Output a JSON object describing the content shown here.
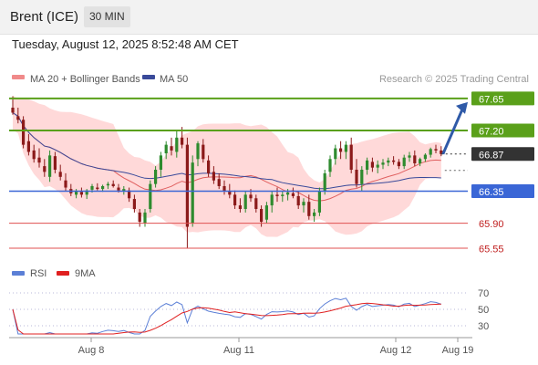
{
  "header": {
    "instrument": "Brent (ICE)",
    "timeframe": "30 MIN"
  },
  "datetime": "Tuesday, August 12, 2025 8:52:48 AM CET",
  "legend": {
    "ma20_label": "MA 20 + Bollinger Bands",
    "ma50_label": "MA 50",
    "credit": "Research © 2025 Trading Central",
    "rsi_label": "RSI",
    "rsi_ma_label": "9MA"
  },
  "colors": {
    "up_candle": "#2e8b2e",
    "down_candle": "#8b1a1a",
    "bollinger_fill": "#ffd2d2",
    "ma20": "#e06060",
    "ma50": "#3a4a9a",
    "resistance": "#5aa01a",
    "pivot": "#3a66d6",
    "support": "#e05050",
    "last_price": "#333333",
    "arrow": "#2f5aa8",
    "rsi": "#5b7fd6",
    "rsi_ma": "#e02020"
  },
  "chart_data": {
    "type": "line",
    "title": "Brent (ICE)",
    "timeframe": "30 MIN",
    "x_ticks": [
      "Aug 8",
      "Aug 11",
      "Aug 12",
      "Aug 19"
    ],
    "price_levels": [
      {
        "value": 67.65,
        "label": "67.65",
        "kind": "resistance"
      },
      {
        "value": 67.2,
        "label": "67.20",
        "kind": "resistance"
      },
      {
        "value": 66.87,
        "label": "66.87",
        "kind": "last"
      },
      {
        "value": 66.35,
        "label": "66.35",
        "kind": "pivot"
      },
      {
        "value": 65.9,
        "label": "65.90",
        "kind": "support"
      },
      {
        "value": 65.55,
        "label": "65.55",
        "kind": "support"
      }
    ],
    "target_arrow": {
      "from": 66.87,
      "to": 67.65
    },
    "series": [
      {
        "name": "Brent (ICE)",
        "type": "candlestick",
        "values": [
          [
            67.52,
            67.68,
            67.42,
            67.45
          ],
          [
            67.4,
            67.52,
            67.3,
            67.35
          ],
          [
            67.35,
            67.4,
            66.95,
            67.0
          ],
          [
            67.05,
            67.15,
            66.85,
            66.9
          ],
          [
            66.92,
            67.0,
            66.75,
            66.8
          ],
          [
            66.82,
            66.95,
            66.68,
            66.75
          ],
          [
            66.7,
            66.8,
            66.55,
            66.62
          ],
          [
            66.55,
            66.92,
            66.48,
            66.85
          ],
          [
            66.84,
            66.9,
            66.6,
            66.65
          ],
          [
            66.62,
            66.72,
            66.5,
            66.55
          ],
          [
            66.5,
            66.6,
            66.35,
            66.4
          ],
          [
            66.38,
            66.45,
            66.28,
            66.32
          ],
          [
            66.3,
            66.38,
            66.25,
            66.35
          ],
          [
            66.34,
            66.4,
            66.26,
            66.3
          ],
          [
            66.3,
            66.38,
            66.24,
            66.36
          ],
          [
            66.37,
            66.45,
            66.33,
            66.42
          ],
          [
            66.4,
            66.46,
            66.36,
            66.38
          ],
          [
            66.38,
            66.44,
            66.34,
            66.42
          ],
          [
            66.43,
            66.48,
            66.38,
            66.45
          ],
          [
            66.45,
            66.5,
            66.4,
            66.42
          ],
          [
            66.4,
            66.45,
            66.33,
            66.36
          ],
          [
            66.35,
            66.42,
            66.3,
            66.38
          ],
          [
            66.36,
            66.4,
            66.2,
            66.25
          ],
          [
            66.24,
            66.3,
            66.05,
            66.1
          ],
          [
            66.05,
            66.1,
            65.85,
            65.92
          ],
          [
            65.9,
            66.1,
            65.85,
            66.05
          ],
          [
            66.1,
            66.5,
            66.05,
            66.45
          ],
          [
            66.45,
            66.7,
            66.4,
            66.65
          ],
          [
            66.65,
            66.9,
            66.55,
            66.85
          ],
          [
            66.88,
            67.05,
            66.8,
            67.0
          ],
          [
            66.98,
            67.1,
            66.85,
            66.92
          ],
          [
            66.9,
            67.2,
            66.82,
            67.1
          ],
          [
            67.1,
            67.25,
            66.95,
            67.0
          ],
          [
            67.0,
            67.1,
            65.55,
            65.85
          ],
          [
            65.9,
            66.85,
            65.85,
            66.75
          ],
          [
            66.8,
            67.05,
            66.7,
            67.02
          ],
          [
            67.0,
            67.08,
            66.75,
            66.8
          ],
          [
            66.78,
            66.85,
            66.55,
            66.6
          ],
          [
            66.62,
            66.7,
            66.45,
            66.5
          ],
          [
            66.52,
            66.6,
            66.38,
            66.42
          ],
          [
            66.42,
            66.5,
            66.3,
            66.35
          ],
          [
            66.35,
            66.45,
            66.25,
            66.3
          ],
          [
            66.3,
            66.36,
            66.1,
            66.15
          ],
          [
            66.15,
            66.25,
            66.05,
            66.1
          ],
          [
            66.1,
            66.35,
            66.05,
            66.3
          ],
          [
            66.3,
            66.38,
            66.2,
            66.25
          ],
          [
            66.25,
            66.3,
            66.05,
            66.1
          ],
          [
            66.1,
            66.15,
            65.85,
            65.92
          ],
          [
            65.95,
            66.2,
            65.9,
            66.15
          ],
          [
            66.15,
            66.35,
            66.05,
            66.3
          ],
          [
            66.3,
            66.4,
            66.2,
            66.28
          ],
          [
            66.28,
            66.35,
            66.2,
            66.3
          ],
          [
            66.3,
            66.38,
            66.22,
            66.33
          ],
          [
            66.32,
            66.4,
            66.25,
            66.28
          ],
          [
            66.28,
            66.34,
            66.1,
            66.15
          ],
          [
            66.15,
            66.25,
            66.05,
            66.2
          ],
          [
            66.2,
            66.3,
            65.95,
            66.0
          ],
          [
            66.0,
            66.1,
            65.92,
            66.05
          ],
          [
            66.05,
            66.4,
            66.0,
            66.35
          ],
          [
            66.35,
            66.65,
            66.3,
            66.6
          ],
          [
            66.62,
            66.85,
            66.55,
            66.8
          ],
          [
            66.8,
            67.0,
            66.72,
            66.95
          ],
          [
            66.95,
            67.05,
            66.8,
            66.9
          ],
          [
            66.9,
            67.05,
            66.8,
            67.0
          ],
          [
            67.0,
            67.1,
            66.6,
            66.65
          ],
          [
            66.65,
            66.8,
            66.4,
            66.45
          ],
          [
            66.45,
            66.7,
            66.35,
            66.65
          ],
          [
            66.65,
            66.82,
            66.58,
            66.78
          ],
          [
            66.76,
            66.82,
            66.62,
            66.68
          ],
          [
            66.68,
            66.78,
            66.6,
            66.72
          ],
          [
            66.72,
            66.8,
            66.66,
            66.75
          ],
          [
            66.75,
            66.82,
            66.7,
            66.78
          ],
          [
            66.78,
            66.84,
            66.72,
            66.76
          ],
          [
            66.76,
            66.8,
            66.66,
            66.7
          ],
          [
            66.7,
            66.86,
            66.66,
            66.82
          ],
          [
            66.82,
            66.9,
            66.76,
            66.85
          ],
          [
            66.85,
            66.92,
            66.7,
            66.74
          ],
          [
            66.74,
            66.82,
            66.7,
            66.8
          ],
          [
            66.8,
            66.88,
            66.76,
            66.86
          ],
          [
            66.86,
            66.96,
            66.82,
            66.94
          ],
          [
            66.94,
            67.0,
            66.88,
            66.92
          ],
          [
            66.92,
            66.98,
            66.84,
            66.87
          ]
        ]
      },
      {
        "name": "MA 20",
        "type": "line"
      },
      {
        "name": "MA 50",
        "type": "line"
      },
      {
        "name": "RSI",
        "type": "line",
        "ticks": [
          70,
          50,
          30
        ],
        "ylim": [
          20,
          80
        ]
      },
      {
        "name": "9MA",
        "type": "line"
      }
    ]
  }
}
